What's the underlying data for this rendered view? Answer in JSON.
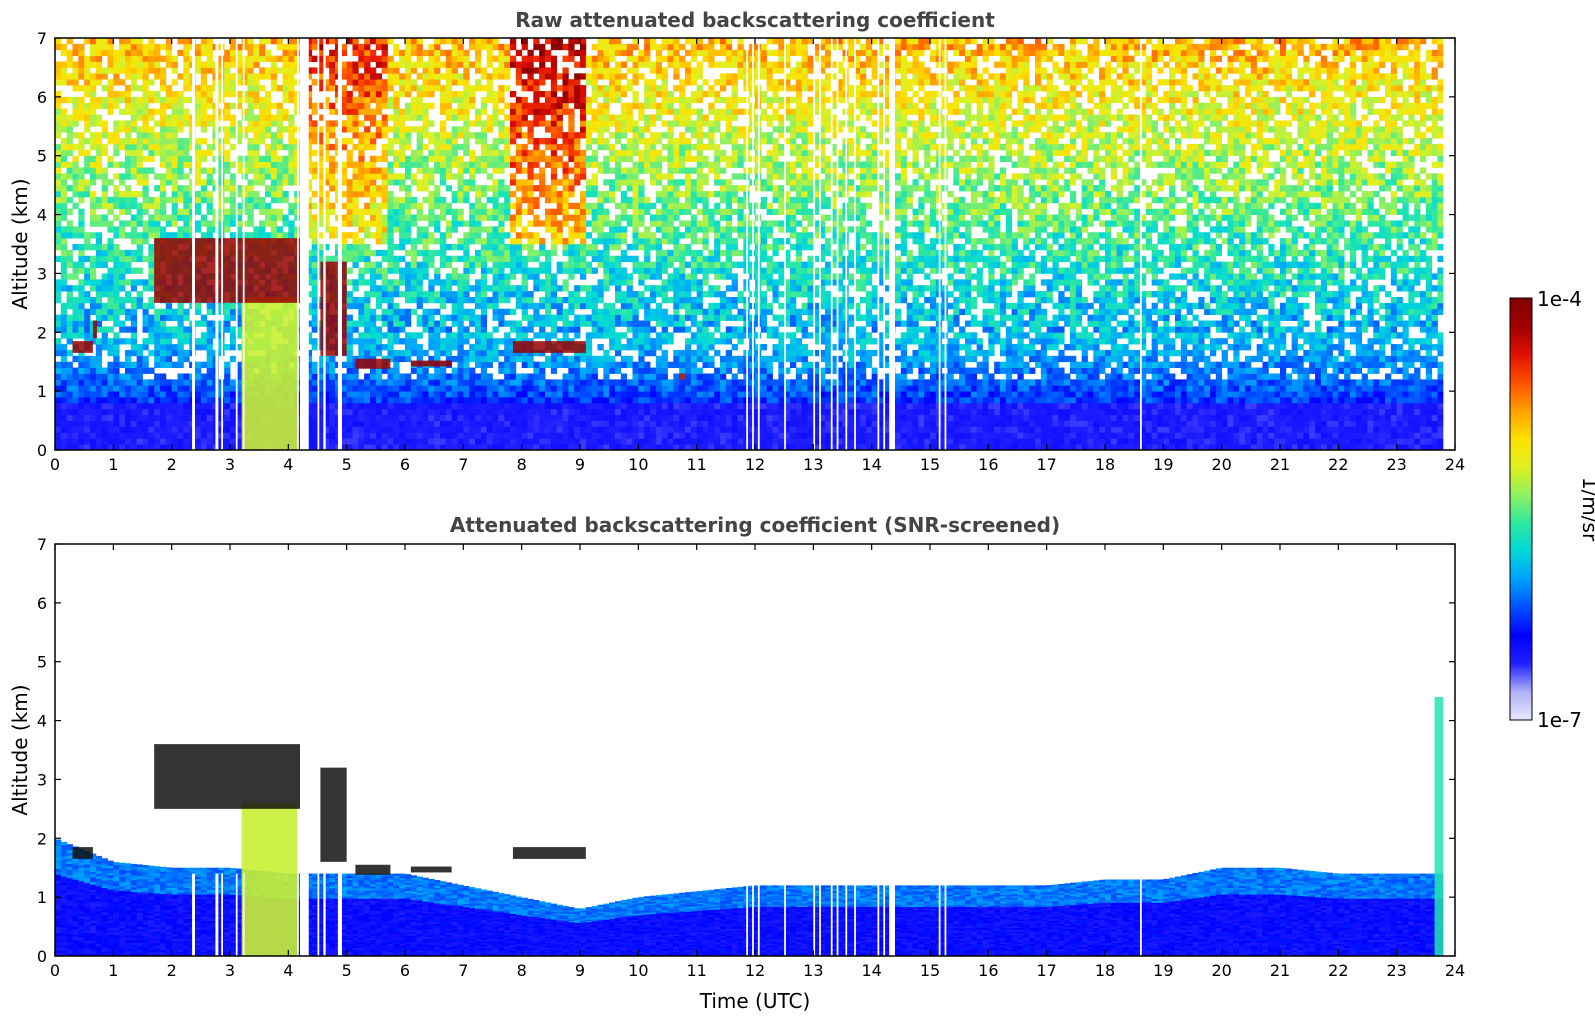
{
  "figure": {
    "colorbar": {
      "max_label": "1e-4",
      "min_label": "1e-7",
      "unit_label": "1/m/sr",
      "scale": "log",
      "range": [
        1e-07,
        0.0001
      ],
      "colormap": [
        "#e8e8ff",
        "#b0b0f8",
        "#2020ff",
        "#0000ff",
        "#0050ff",
        "#00a0ff",
        "#00d8d8",
        "#30e8a0",
        "#90f060",
        "#e0f020",
        "#ffe000",
        "#ffa000",
        "#ff5000",
        "#e01000",
        "#a00000",
        "#800000"
      ]
    }
  },
  "chart_data": [
    {
      "type": "heatmap",
      "title": "Raw attenuated backscattering coefficient",
      "xlabel": "",
      "ylabel": "Altitude (km)",
      "xlim": [
        0,
        24
      ],
      "ylim": [
        0,
        7
      ],
      "xticks": [
        "0",
        "1",
        "2",
        "3",
        "4",
        "5",
        "6",
        "7",
        "8",
        "9",
        "10",
        "11",
        "12",
        "13",
        "14",
        "15",
        "16",
        "17",
        "18",
        "19",
        "20",
        "21",
        "22",
        "23",
        "24"
      ],
      "yticks": [
        "0",
        "1",
        "2",
        "3",
        "4",
        "5",
        "6",
        "7"
      ],
      "screened": false,
      "missing_data_gaps_hours": [
        [
          2.35,
          2.4
        ],
        [
          2.75,
          2.8
        ],
        [
          2.85,
          2.88
        ],
        [
          3.1,
          3.13
        ],
        [
          3.22,
          3.25
        ],
        [
          4.15,
          4.18
        ],
        [
          4.2,
          4.35
        ],
        [
          4.5,
          4.53
        ],
        [
          4.6,
          4.64
        ],
        [
          4.85,
          4.92
        ],
        [
          11.85,
          11.88
        ],
        [
          11.95,
          11.98
        ],
        [
          12.05,
          12.08
        ],
        [
          12.5,
          12.53
        ],
        [
          13.0,
          13.03
        ],
        [
          13.1,
          13.13
        ],
        [
          13.3,
          13.33
        ],
        [
          13.4,
          13.43
        ],
        [
          13.55,
          13.58
        ],
        [
          13.7,
          13.73
        ],
        [
          14.1,
          14.13
        ],
        [
          14.2,
          14.23
        ],
        [
          14.3,
          14.4
        ],
        [
          15.15,
          15.18
        ],
        [
          15.25,
          15.28
        ],
        [
          18.6,
          18.63
        ],
        [
          23.8,
          24.0
        ]
      ],
      "cloud_layers": [
        {
          "t": [
            0.3,
            0.65
          ],
          "alt_km": [
            1.65,
            1.85
          ],
          "strength": "very high"
        },
        {
          "t": [
            0.65,
            0.72
          ],
          "alt_km": [
            1.9,
            2.2
          ],
          "strength": "high"
        },
        {
          "t": [
            1.7,
            4.2
          ],
          "alt_km": [
            2.5,
            3.6
          ],
          "strength": "very high"
        },
        {
          "t": [
            4.55,
            5.0
          ],
          "alt_km": [
            1.6,
            3.2
          ],
          "strength": "very high"
        },
        {
          "t": [
            5.15,
            5.75
          ],
          "alt_km": [
            1.38,
            1.55
          ],
          "strength": "high"
        },
        {
          "t": [
            6.1,
            6.8
          ],
          "alt_km": [
            1.42,
            1.52
          ],
          "strength": "high"
        },
        {
          "t": [
            7.85,
            9.1
          ],
          "alt_km": [
            1.65,
            1.85
          ],
          "strength": "very high"
        },
        {
          "t": [
            10.7,
            10.8
          ],
          "alt_km": [
            1.2,
            1.3
          ],
          "strength": "high"
        }
      ],
      "precipitation_column": {
        "t": [
          3.2,
          4.15
        ],
        "alt_km": [
          0,
          2.6
        ]
      }
    },
    {
      "type": "heatmap",
      "title": "Attenuated backscattering coefficient (SNR-screened)",
      "xlabel": "Time (UTC)",
      "ylabel": "Altitude (km)",
      "xlim": [
        0,
        24
      ],
      "ylim": [
        0,
        7
      ],
      "xticks": [
        "0",
        "1",
        "2",
        "3",
        "4",
        "5",
        "6",
        "7",
        "8",
        "9",
        "10",
        "11",
        "12",
        "13",
        "14",
        "15",
        "16",
        "17",
        "18",
        "19",
        "20",
        "21",
        "22",
        "23",
        "24"
      ],
      "yticks": [
        "0",
        "1",
        "2",
        "3",
        "4",
        "5",
        "6",
        "7"
      ],
      "screened": true,
      "boundary_layer_top_km": [
        [
          0,
          2.0
        ],
        [
          1,
          1.6
        ],
        [
          2,
          1.5
        ],
        [
          3,
          1.5
        ],
        [
          4,
          1.4
        ],
        [
          5,
          1.4
        ],
        [
          6,
          1.4
        ],
        [
          7,
          1.2
        ],
        [
          8,
          1.0
        ],
        [
          9,
          0.8
        ],
        [
          10,
          1.0
        ],
        [
          11,
          1.1
        ],
        [
          12,
          1.2
        ],
        [
          13,
          1.2
        ],
        [
          14,
          1.2
        ],
        [
          15,
          1.2
        ],
        [
          16,
          1.2
        ],
        [
          17,
          1.2
        ],
        [
          18,
          1.3
        ],
        [
          19,
          1.3
        ],
        [
          20,
          1.5
        ],
        [
          21,
          1.5
        ],
        [
          22,
          1.4
        ],
        [
          23,
          1.4
        ],
        [
          23.8,
          1.4
        ]
      ],
      "cloud_layers": [
        {
          "t": [
            0.3,
            0.65
          ],
          "alt_km": [
            1.65,
            1.85
          ],
          "strength": "saturated"
        },
        {
          "t": [
            1.7,
            4.2
          ],
          "alt_km": [
            2.5,
            3.6
          ],
          "strength": "saturated"
        },
        {
          "t": [
            4.55,
            5.0
          ],
          "alt_km": [
            1.6,
            3.2
          ],
          "strength": "saturated"
        },
        {
          "t": [
            5.15,
            5.75
          ],
          "alt_km": [
            1.38,
            1.55
          ],
          "strength": "saturated"
        },
        {
          "t": [
            6.1,
            6.8
          ],
          "alt_km": [
            1.42,
            1.52
          ],
          "strength": "saturated"
        },
        {
          "t": [
            7.85,
            9.1
          ],
          "alt_km": [
            1.65,
            1.85
          ],
          "strength": "saturated"
        }
      ],
      "precipitation_column": {
        "t": [
          3.2,
          4.15
        ],
        "alt_km": [
          0,
          2.6
        ]
      },
      "late_plume": {
        "t": [
          23.65,
          23.8
        ],
        "alt_km": [
          0,
          4.4
        ]
      }
    }
  ]
}
